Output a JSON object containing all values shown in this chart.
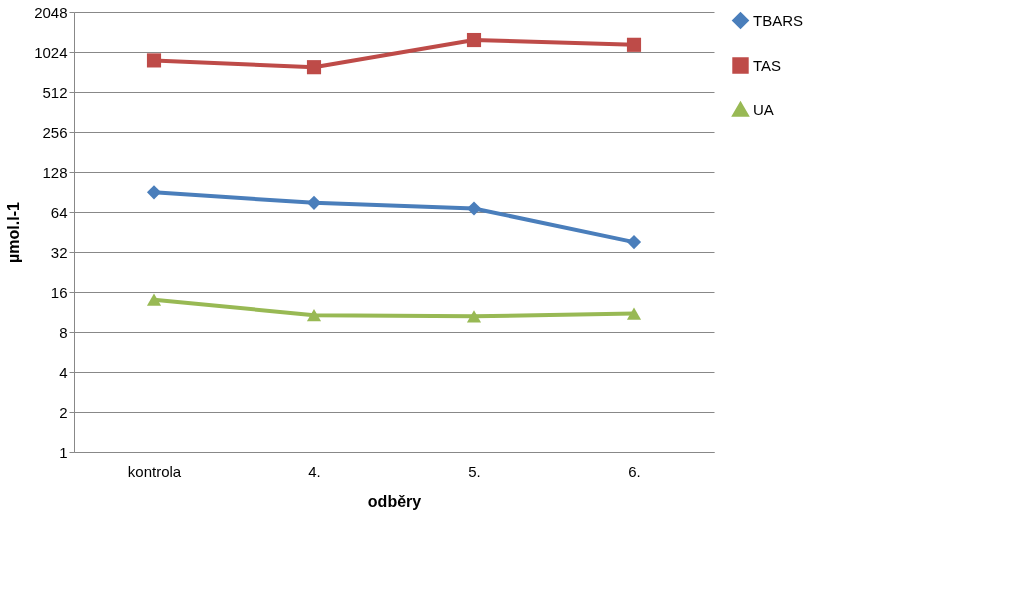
{
  "chart_data": {
    "type": "line",
    "xlabel": "odběry",
    "ylabel": "µmol.l-1",
    "categories": [
      "kontrola",
      "4.",
      "5.",
      "6."
    ],
    "series": [
      {
        "name": "TBARS",
        "color": "#4a7ebb",
        "marker": "diamond",
        "values": [
          90,
          75,
          68,
          38
        ]
      },
      {
        "name": "TAS",
        "color": "#be4b48",
        "marker": "square",
        "values": [
          885,
          787,
          1260,
          1160
        ]
      },
      {
        "name": "UA",
        "color": "#98b954",
        "marker": "triangle",
        "values": [
          14,
          10.7,
          10.5,
          11
        ]
      }
    ],
    "log": "y",
    "ylim": [
      1,
      2048
    ],
    "yticks": [
      1,
      2,
      4,
      8,
      16,
      32,
      64,
      128,
      256,
      512,
      1024,
      2048
    ],
    "grid": "y",
    "legend": "right",
    "line_style": "solid"
  }
}
